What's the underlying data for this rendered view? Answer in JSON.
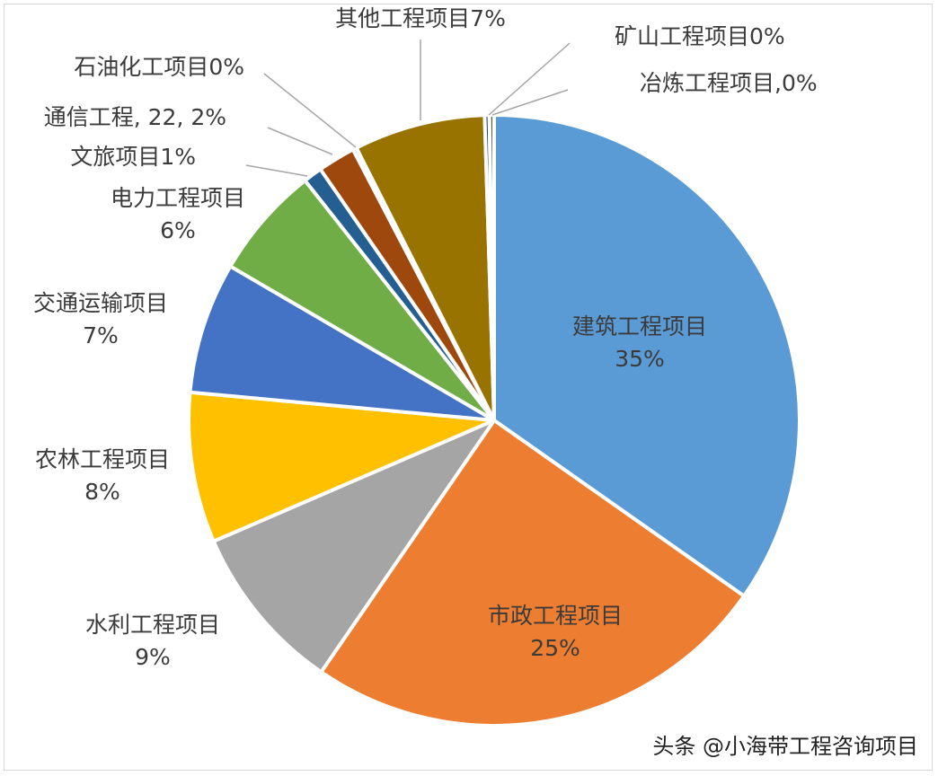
{
  "chart_data": {
    "type": "pie",
    "title": "",
    "slices": [
      {
        "name": "建筑工程项目",
        "value": 35,
        "label": [
          "建筑工程项目",
          "35%"
        ],
        "color": "#5b9bd5"
      },
      {
        "name": "市政工程项目",
        "value": 25,
        "label": [
          "市政工程项目",
          "25%"
        ],
        "color": "#ed7d31"
      },
      {
        "name": "水利工程项目",
        "value": 9,
        "label": [
          "水利工程项目",
          "9%"
        ],
        "color": "#a5a5a5"
      },
      {
        "name": "农林工程项目",
        "value": 8,
        "label": [
          "农林工程项目",
          "8%"
        ],
        "color": "#ffc000"
      },
      {
        "name": "交通运输项目",
        "value": 7,
        "label": [
          "交通运输项目",
          "7%"
        ],
        "color": "#4472c4"
      },
      {
        "name": "电力工程项目",
        "value": 6,
        "label": [
          "电力工程项目",
          "6%"
        ],
        "color": "#70ad47"
      },
      {
        "name": "文旅项目",
        "value": 1,
        "label": [
          "文旅项目1%"
        ],
        "color": "#255e91"
      },
      {
        "name": "通信工程",
        "value": 2,
        "label": [
          "通信工程, 22, 2%"
        ],
        "color": "#9e480e"
      },
      {
        "name": "石油化工项目",
        "value": 0.2,
        "label": [
          "石油化工项目0%"
        ],
        "color": "#636363"
      },
      {
        "name": "其他工程项目",
        "value": 7,
        "label": [
          "其他工程项目7%"
        ],
        "color": "#997300"
      },
      {
        "name": "矿山工程项目",
        "value": 0.25,
        "label": [
          "矿山工程项目0%"
        ],
        "color": "#264478"
      },
      {
        "name": "冶炼工程项目",
        "value": 0.25,
        "label": [
          "冶炼工程项目,0%"
        ],
        "color": "#43682b"
      }
    ]
  },
  "watermark": "头条 @小海带工程咨询项目"
}
